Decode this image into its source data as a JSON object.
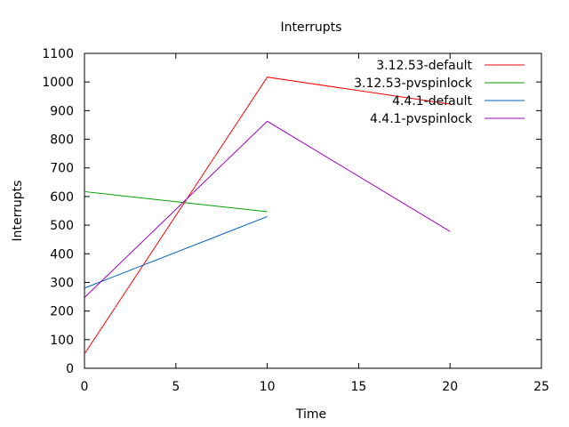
{
  "chart_data": {
    "type": "line",
    "title": "Interrupts",
    "xlabel": "Time",
    "ylabel": "Interrupts",
    "xlim": [
      0,
      25
    ],
    "ylim": [
      0,
      1100
    ],
    "xticks": [
      0,
      5,
      10,
      15,
      20,
      25
    ],
    "yticks": [
      0,
      100,
      200,
      300,
      400,
      500,
      600,
      700,
      800,
      900,
      1000,
      1100
    ],
    "grid": false,
    "legend": "top-right",
    "series": [
      {
        "name": "3.12.53-default",
        "color": "#ff0000",
        "x": [
          0,
          10,
          20
        ],
        "y": [
          50,
          1017,
          923
        ]
      },
      {
        "name": "3.12.53-pvspinlock",
        "color": "#00a000",
        "x": [
          0,
          10
        ],
        "y": [
          617,
          547
        ]
      },
      {
        "name": "4.4.1-default",
        "color": "#0060c0",
        "x": [
          0,
          10
        ],
        "y": [
          280,
          530
        ]
      },
      {
        "name": "4.4.1-pvspinlock",
        "color": "#a000c0",
        "x": [
          0,
          10,
          20
        ],
        "y": [
          247,
          863,
          478
        ]
      }
    ]
  }
}
